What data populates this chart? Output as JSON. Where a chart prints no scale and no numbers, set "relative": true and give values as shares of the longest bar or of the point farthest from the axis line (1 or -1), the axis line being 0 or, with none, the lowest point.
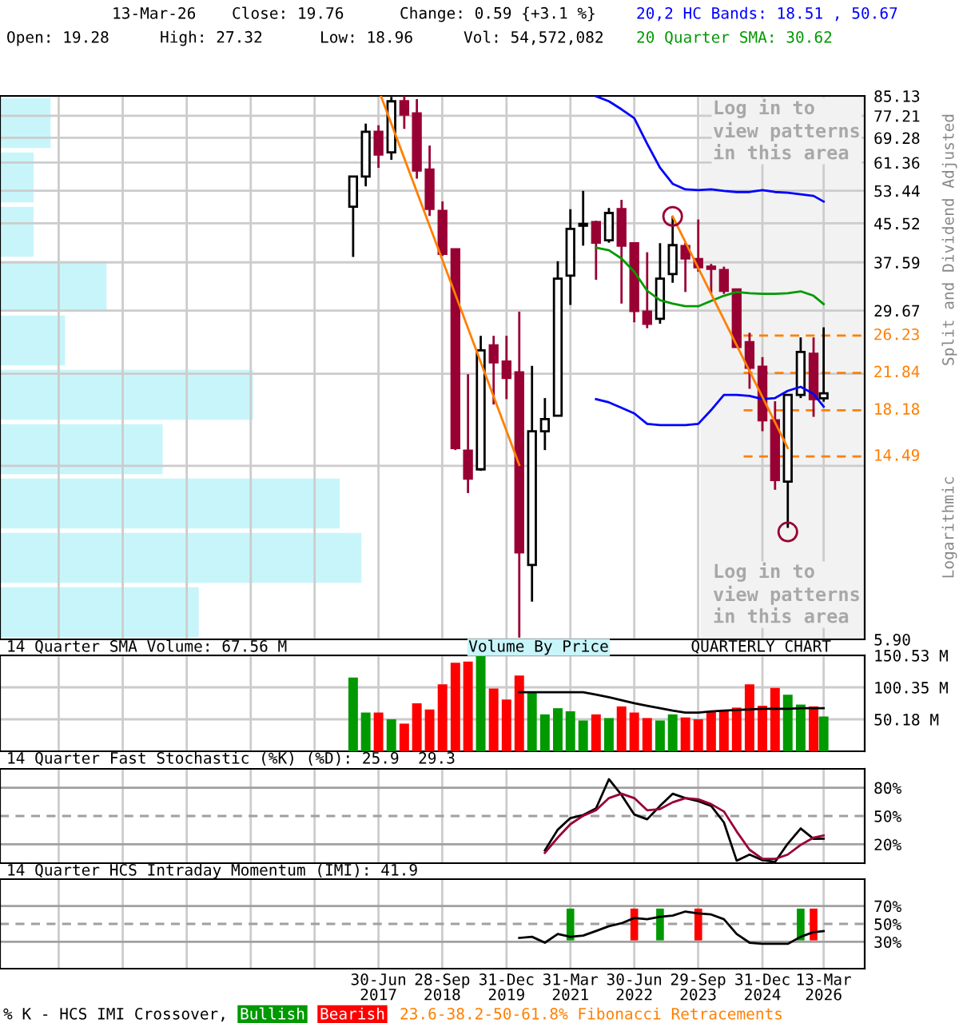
{
  "chart_data": [
    {
      "type": "candlestick",
      "x": [
        "2016-12-31",
        "2017-03-31",
        "2017-06-30",
        "2017-09-30",
        "2017-12-31",
        "2018-03-31",
        "2018-06-30",
        "2018-09-30",
        "2018-12-31",
        "2019-03-31",
        "2019-06-30",
        "2019-09-30",
        "2019-12-31",
        "2020-03-31",
        "2020-06-30",
        "2020-09-30",
        "2020-12-31",
        "2021-03-31",
        "2021-06-30",
        "2021-09-30",
        "2021-12-31",
        "2022-03-31",
        "2022-06-30",
        "2022-09-30",
        "2022-12-31",
        "2023-03-31",
        "2023-06-30",
        "2023-09-30",
        "2023-12-31",
        "2024-03-31",
        "2024-06-30",
        "2024-09-30",
        "2024-12-31",
        "2025-03-31",
        "2025-06-30",
        "2025-09-30",
        "2025-12-31",
        "2026-03-13"
      ],
      "ohlc": [
        [
          49.4,
          57.3,
          38.6,
          57.3
        ],
        [
          57.3,
          74.3,
          54.6,
          71.4
        ],
        [
          71.4,
          73.7,
          59.8,
          63.8
        ],
        [
          64.5,
          84.7,
          62.2,
          82.9
        ],
        [
          82.9,
          85.1,
          72.4,
          77.7
        ],
        [
          78.1,
          83.8,
          56.7,
          59.0
        ],
        [
          59.3,
          66.7,
          47.2,
          48.9
        ],
        [
          48.4,
          50.7,
          38.8,
          39.2
        ],
        [
          40.1,
          40.1,
          14.95,
          15.1
        ],
        [
          14.9,
          21.7,
          12.1,
          13.0
        ],
        [
          13.6,
          26.2,
          13.5,
          24.4
        ],
        [
          25.0,
          26.2,
          18.7,
          23.0
        ],
        [
          23.1,
          26.2,
          19.2,
          21.3
        ],
        [
          21.9,
          29.5,
          5.95,
          9.05
        ],
        [
          8.5,
          22.6,
          7.1,
          16.4
        ],
        [
          16.4,
          19.3,
          14.95,
          17.4
        ],
        [
          17.7,
          37.8,
          17.7,
          34.7
        ],
        [
          35.2,
          48.8,
          30.5,
          44.3
        ],
        [
          45.0,
          53.4,
          40.8,
          45.4
        ],
        [
          45.8,
          46.1,
          34.5,
          41.4
        ],
        [
          41.9,
          49.1,
          41.4,
          47.9
        ],
        [
          48.8,
          51.1,
          30.7,
          40.8
        ],
        [
          41.3,
          41.3,
          28.0,
          29.6
        ],
        [
          29.5,
          39.5,
          27.2,
          27.8
        ],
        [
          28.5,
          41.3,
          27.8,
          34.7
        ],
        [
          35.5,
          47.1,
          34.0,
          40.9
        ],
        [
          40.7,
          41.4,
          32.5,
          38.3
        ],
        [
          38.2,
          46.4,
          35.9,
          36.7
        ],
        [
          36.8,
          37.3,
          32.3,
          36.4
        ],
        [
          36.2,
          36.8,
          32.2,
          32.7
        ],
        [
          32.9,
          32.9,
          24.8,
          24.8
        ],
        [
          25.4,
          26.6,
          20.2,
          22.4
        ],
        [
          22.5,
          23.6,
          16.4,
          17.3
        ],
        [
          17.3,
          19.0,
          12.3,
          12.9
        ],
        [
          12.8,
          19.6,
          10.2,
          19.6
        ],
        [
          19.6,
          26.0,
          19.3,
          24.2
        ],
        [
          24.0,
          26.0,
          17.6,
          19.2
        ],
        [
          19.28,
          27.32,
          18.96,
          19.76
        ]
      ],
      "colors": [
        "#ffffff",
        "#ffffff",
        "#990033",
        "#ffffff",
        "#990033",
        "#990033",
        "#990033",
        "#990033",
        "#990033",
        "#990033",
        "#ffffff",
        "#990033",
        "#990033",
        "#990033",
        "#ffffff",
        "#ffffff",
        "#ffffff",
        "#ffffff",
        "#ffffff",
        "#990033",
        "#ffffff",
        "#990033",
        "#990033",
        "#990033",
        "#ffffff",
        "#ffffff",
        "#990033",
        "#990033",
        "#990033",
        "#990033",
        "#990033",
        "#990033",
        "#990033",
        "#990033",
        "#ffffff",
        "#ffffff",
        "#990033",
        "#ffffff"
      ],
      "series": [
        {
          "type": "line",
          "name": "20 Quarter SMA: 30.62",
          "color": "#009900",
          "x": [
            "2021-09-30",
            "2021-12-31",
            "2022-03-31",
            "2022-06-30",
            "2022-09-30",
            "2022-12-31",
            "2023-03-31",
            "2023-06-30",
            "2023-09-30",
            "2023-12-31",
            "2024-03-31",
            "2024-06-30",
            "2024-09-30",
            "2024-12-31",
            "2025-03-31",
            "2025-06-30",
            "2025-09-30",
            "2025-12-31",
            "2026-03-13"
          ],
          "values": [
            40.4,
            39.9,
            38.3,
            35.9,
            32.7,
            31.2,
            30.7,
            30.3,
            30.3,
            31.1,
            31.9,
            32.5,
            32.3,
            32.2,
            32.2,
            32.3,
            32.6,
            31.9,
            30.62
          ]
        },
        {
          "type": "line",
          "name": "20,2 HC Bands: 18.51 , 50.67",
          "color": "#0000ff",
          "x": [
            "2021-09-30",
            "2021-12-31",
            "2022-03-31",
            "2022-06-30",
            "2022-09-30",
            "2022-12-31",
            "2023-03-31",
            "2023-06-30",
            "2023-09-30",
            "2023-12-31",
            "2024-03-31",
            "2024-06-30",
            "2024-09-30",
            "2024-12-31",
            "2025-03-31",
            "2025-06-30",
            "2025-09-30",
            "2025-12-31",
            "2026-03-13"
          ],
          "values": [
            85.0,
            82.9,
            79.7,
            76.3,
            67.3,
            59.8,
            55.3,
            53.8,
            53.6,
            53.8,
            53.4,
            53.1,
            53.1,
            53.6,
            53.1,
            52.9,
            52.5,
            52.1,
            50.67
          ]
        },
        {
          "type": "line",
          "color": "#0000ff",
          "x": [
            "2021-09-30",
            "2021-12-31",
            "2022-03-31",
            "2022-06-30",
            "2022-09-30",
            "2022-12-31",
            "2023-03-31",
            "2023-06-30",
            "2023-09-30",
            "2023-12-31",
            "2024-03-31",
            "2024-06-30",
            "2024-09-30",
            "2024-12-31",
            "2025-03-31",
            "2025-06-30",
            "2025-09-30",
            "2025-12-31",
            "2026-03-13"
          ],
          "values": [
            19.2,
            18.9,
            18.4,
            17.9,
            17.0,
            16.9,
            16.9,
            16.9,
            17.0,
            18.2,
            19.6,
            19.6,
            19.5,
            19.2,
            19.3,
            20.0,
            20.4,
            19.7,
            18.51
          ]
        },
        {
          "type": "line",
          "color": "#ff7f00",
          "x": [
            "2017-07-18",
            "2020-03-31"
          ],
          "values": [
            85.0,
            13.9
          ]
        },
        {
          "type": "line",
          "color": "#ff7f00",
          "x": [
            "2023-03-31",
            "2025-06-30"
          ],
          "values": [
            47.1,
            15.1
          ]
        },
        {
          "type": "scatter",
          "color": "#990033",
          "marker": "circle",
          "x": [
            "2023-03-31",
            "2025-06-30"
          ],
          "values": [
            47.1,
            10.0
          ]
        }
      ],
      "log": true,
      "ylim": [
        5.9,
        85.13
      ],
      "yticks": [
        {
          "value": 5.9,
          "label": "5.90"
        },
        {
          "value": 13.83,
          "label": null
        },
        {
          "value": 21.75,
          "label": null
        },
        29.67,
        37.59,
        45.52,
        53.44,
        61.36,
        69.28,
        77.21,
        85.13
      ],
      "xlim": [
        "2010-02-05",
        "2026-12-31"
      ],
      "xticks": [
        {
          "value": "2011-03-31",
          "label": null
        },
        {
          "value": "2012-06-30",
          "label": null
        },
        {
          "value": "2013-09-30",
          "label": null
        },
        {
          "value": "2014-12-31",
          "label": null
        },
        {
          "value": "2016-03-31",
          "label": null
        },
        {
          "value": "2017-06-30",
          "label": null
        },
        {
          "value": "2018-09-28",
          "label": null
        },
        {
          "value": "2019-12-31",
          "label": null
        },
        {
          "value": "2021-03-31",
          "label": null
        },
        {
          "value": "2022-06-30",
          "label": null
        },
        {
          "value": "2023-09-29",
          "label": null
        },
        {
          "value": "2024-12-31",
          "label": null
        },
        {
          "value": "2026-03-13",
          "label": null
        }
      ],
      "tick_labels": "y",
      "grid": true,
      "legend": "top right",
      "ylabel": "Split and Dividend Adjusted",
      "ref_lines": [
        {
          "axis": "y",
          "value": 26.23,
          "label": "26.23",
          "color": "#ff7f00",
          "line_style": "dashed"
        },
        {
          "axis": "y",
          "value": 21.84,
          "label": "21.84",
          "color": "#ff7f00",
          "line_style": "dashed"
        },
        {
          "axis": "y",
          "value": 18.18,
          "label": "18.18",
          "color": "#ff7f00",
          "line_style": "dashed"
        },
        {
          "axis": "y",
          "value": 14.49,
          "label": "14.49",
          "color": "#ff7f00",
          "line_style": "dashed"
        }
      ],
      "bands": [
        {
          "axis": "x",
          "from": "2023-10-15",
          "to": "2026-12-31",
          "color": "#f2f2f2"
        }
      ],
      "annotations": [
        "13-Mar-26",
        "Close: 19.76",
        "Change: 0.59 {+3.1 %}",
        "Open: 19.28",
        "High: 27.32",
        "Low: 18.96",
        "Vol: 54,572,082",
        "Log in to\nview patterns\nin this area",
        "Log in to\nview patterns\nin this area",
        "Logarithmic"
      ]
    },
    {
      "type": "bar",
      "orientation": "horizontal",
      "relative": true,
      "categories": [
        null,
        null,
        null,
        null,
        null,
        null,
        null,
        null,
        null,
        null
      ],
      "values": [
        0.14,
        0.093,
        0.093,
        0.295,
        0.18,
        0.7,
        0.45,
        0.94,
        1,
        0.55
      ],
      "color": "#c8f5fa"
    },
    {
      "type": "bar",
      "title": "14 Quarter SMA Volume: 67.56 M",
      "x": [
        "2016-12-31",
        "2017-03-31",
        "2017-06-30",
        "2017-09-30",
        "2017-12-31",
        "2018-03-31",
        "2018-06-30",
        "2018-09-30",
        "2018-12-31",
        "2019-03-31",
        "2019-06-30",
        "2019-09-30",
        "2019-12-31",
        "2020-03-31",
        "2020-06-30",
        "2020-09-30",
        "2020-12-31",
        "2021-03-31",
        "2021-06-30",
        "2021-09-30",
        "2021-12-31",
        "2022-03-31",
        "2022-06-30",
        "2022-09-30",
        "2022-12-31",
        "2023-03-31",
        "2023-06-30",
        "2023-09-30",
        "2023-12-31",
        "2024-03-31",
        "2024-06-30",
        "2024-09-30",
        "2024-12-31",
        "2025-03-31",
        "2025-06-30",
        "2025-09-30",
        "2025-12-31",
        "2026-03-13"
      ],
      "values": [
        115.8,
        60.8,
        60.8,
        50.2,
        43.4,
        75.3,
        65.6,
        105.2,
        139.0,
        140.9,
        150.0,
        98.4,
        81.1,
        118.7,
        92.6,
        57.9,
        67.6,
        62.7,
        48.3,
        57.9,
        52.1,
        70.4,
        60.8,
        52.1,
        48.3,
        57.9,
        53.1,
        50.2,
        62.7,
        62.7,
        68.5,
        105.2,
        71.4,
        99.4,
        88.8,
        73.3,
        70.4,
        54.6
      ],
      "colors": [
        "#009900",
        "#009900",
        "#ff0000",
        "#009900",
        "#ff0000",
        "#ff0000",
        "#ff0000",
        "#ff0000",
        "#ff0000",
        "#ff0000",
        "#009900",
        "#ff0000",
        "#ff0000",
        "#ff0000",
        "#009900",
        "#009900",
        "#009900",
        "#009900",
        "#009900",
        "#ff0000",
        "#009900",
        "#ff0000",
        "#ff0000",
        "#ff0000",
        "#009900",
        "#009900",
        "#ff0000",
        "#ff0000",
        "#ff0000",
        "#ff0000",
        "#ff0000",
        "#ff0000",
        "#ff0000",
        "#ff0000",
        "#009900",
        "#009900",
        "#ff0000",
        "#009900"
      ],
      "series": [
        {
          "type": "line",
          "color": "#000000",
          "x": [
            "2020-03-31",
            "2020-06-30",
            "2020-09-30",
            "2020-12-31",
            "2021-03-31",
            "2021-06-30",
            "2021-09-30",
            "2021-12-31",
            "2022-03-31",
            "2022-06-30",
            "2022-09-30",
            "2022-12-31",
            "2023-03-31",
            "2023-06-30",
            "2023-09-30",
            "2023-12-31",
            "2024-03-31",
            "2024-06-30",
            "2024-09-30",
            "2024-12-31",
            "2025-03-31",
            "2025-06-30",
            "2025-09-30",
            "2025-12-31",
            "2026-03-13"
          ],
          "values": [
            92.6,
            92.6,
            92.6,
            92.6,
            92.6,
            92.6,
            88.8,
            84.9,
            80.1,
            75.3,
            71.4,
            67.6,
            63.7,
            60.8,
            60.8,
            62.7,
            63.7,
            64.7,
            65.6,
            66.6,
            66.6,
            66.6,
            67.6,
            67.6,
            67.56
          ]
        }
      ],
      "ylim": [
        0,
        150.53
      ],
      "yticks": [
        {
          "value": 50.18,
          "label": "50.18 M"
        },
        {
          "value": 100.35,
          "label": "100.35 M"
        },
        {
          "value": 150.53,
          "label": "150.53 M"
        }
      ],
      "xlim": [
        "2010-02-05",
        "2026-12-31"
      ],
      "xticks": [
        {
          "value": "2011-03-31",
          "label": null
        },
        {
          "value": "2012-06-30",
          "label": null
        },
        {
          "value": "2013-09-30",
          "label": null
        },
        {
          "value": "2014-12-31",
          "label": null
        },
        {
          "value": "2016-03-31",
          "label": null
        },
        {
          "value": "2017-06-30",
          "label": null
        },
        {
          "value": "2018-09-28",
          "label": null
        },
        {
          "value": "2019-12-31",
          "label": null
        },
        {
          "value": "2021-03-31",
          "label": null
        },
        {
          "value": "2022-06-30",
          "label": null
        },
        {
          "value": "2023-09-29",
          "label": null
        },
        {
          "value": "2024-12-31",
          "label": null
        },
        {
          "value": "2026-03-13",
          "label": null
        }
      ],
      "tick_labels": "y",
      "grid": true,
      "annotations": [
        "QUARTERLY CHART",
        "Volume By Price"
      ]
    },
    {
      "type": "line",
      "title": "14 Quarter Fast Stochastic (%K) (%D): 25.9  29.3",
      "series": [
        {
          "type": "line",
          "color": "#000000",
          "x": [
            "2020-09-30",
            "2020-12-31",
            "2021-03-31",
            "2021-06-30",
            "2021-09-30",
            "2021-12-31",
            "2022-03-31",
            "2022-06-30",
            "2022-09-30",
            "2022-12-31",
            "2023-03-31",
            "2023-06-30",
            "2023-09-30",
            "2023-12-31",
            "2024-03-31",
            "2024-06-30",
            "2024-09-30",
            "2024-12-31",
            "2025-03-31",
            "2025-06-30",
            "2025-09-30",
            "2025-12-31",
            "2026-03-13"
          ],
          "values": [
            13.6,
            35.5,
            47.8,
            51.0,
            58.1,
            89.0,
            72.3,
            51.6,
            46.5,
            60.7,
            73.6,
            69.0,
            65.8,
            60.7,
            43.2,
            2.6,
            9.1,
            3.2,
            1.3,
            20.7,
            36.8,
            25.8,
            25.9
          ]
        },
        {
          "type": "line",
          "color": "#990033",
          "x": [
            "2020-09-30",
            "2020-12-31",
            "2021-03-31",
            "2021-06-30",
            "2021-09-30",
            "2021-12-31",
            "2022-03-31",
            "2022-06-30",
            "2022-09-30",
            "2022-12-31",
            "2023-03-31",
            "2023-06-30",
            "2023-09-30",
            "2023-12-31",
            "2024-03-31",
            "2024-06-30",
            "2024-09-30",
            "2024-12-31",
            "2025-03-31",
            "2025-06-30",
            "2025-09-30",
            "2025-12-31",
            "2026-03-13"
          ],
          "values": [
            11.0,
            27.1,
            41.3,
            50.3,
            56.1,
            69.0,
            73.6,
            69.0,
            56.1,
            57.4,
            64.5,
            69.0,
            67.7,
            62.6,
            54.8,
            33.6,
            14.2,
            4.5,
            4.5,
            9.1,
            19.4,
            27.1,
            29.3
          ]
        }
      ],
      "ylim": [
        0,
        100
      ],
      "yticks": [
        {
          "value": 20,
          "label": "20%"
        },
        {
          "value": 50,
          "label": "50%"
        },
        {
          "value": 80,
          "label": "80%"
        }
      ],
      "xlim": [
        "2010-02-05",
        "2026-12-31"
      ],
      "xticks": [
        {
          "value": "2011-03-31",
          "label": null
        },
        {
          "value": "2012-06-30",
          "label": null
        },
        {
          "value": "2013-09-30",
          "label": null
        },
        {
          "value": "2014-12-31",
          "label": null
        },
        {
          "value": "2016-03-31",
          "label": null
        },
        {
          "value": "2017-06-30",
          "label": null
        },
        {
          "value": "2018-09-28",
          "label": null
        },
        {
          "value": "2019-12-31",
          "label": null
        },
        {
          "value": "2021-03-31",
          "label": null
        },
        {
          "value": "2022-06-30",
          "label": null
        },
        {
          "value": "2023-09-29",
          "label": null
        },
        {
          "value": "2024-12-31",
          "label": null
        },
        {
          "value": "2026-03-13",
          "label": null
        }
      ],
      "tick_labels": "y",
      "grid": "x",
      "ref_lines": [
        {
          "axis": "y",
          "value": 20,
          "color": "#a0a0a0",
          "line_style": "solid"
        },
        {
          "axis": "y",
          "value": 50,
          "color": "#a0a0a0",
          "line_style": "dashed"
        },
        {
          "axis": "y",
          "value": 80,
          "color": "#a0a0a0",
          "line_style": "solid"
        }
      ]
    },
    {
      "type": "line",
      "title": "14 Quarter HCS Intraday Momentum (IMI): 41.9",
      "series": [
        {
          "type": "line",
          "color": "#000000",
          "x": [
            "2020-03-31",
            "2020-06-30",
            "2020-09-30",
            "2020-12-31",
            "2021-03-31",
            "2021-06-30",
            "2021-09-30",
            "2021-12-31",
            "2022-03-31",
            "2022-06-30",
            "2022-09-30",
            "2022-12-31",
            "2023-03-31",
            "2023-06-30",
            "2023-09-30",
            "2023-12-31",
            "2024-03-31",
            "2024-06-30",
            "2024-09-30",
            "2024-12-31",
            "2025-03-31",
            "2025-06-30",
            "2025-09-30",
            "2025-12-31",
            "2026-03-13"
          ],
          "values": [
            34.3,
            35.6,
            29.0,
            38.8,
            35.6,
            36.9,
            42.1,
            47.4,
            50.7,
            56.6,
            55.2,
            57.9,
            59.2,
            63.8,
            61.8,
            60.5,
            55.2,
            38.8,
            29.0,
            27.7,
            27.7,
            27.7,
            35.6,
            40.8,
            41.9
          ]
        },
        {
          "type": "bar",
          "name": "Bullish",
          "color": "#009900",
          "x": [
            "2021-03-31",
            "2022-12-31",
            "2025-09-30"
          ],
          "values": [
            35.5,
            35.5,
            35.5
          ],
          "base": [
            31.6,
            31.6,
            31.6
          ]
        },
        {
          "type": "bar",
          "name": "Bearish",
          "color": "#ff0000",
          "x": [
            "2022-06-30",
            "2023-09-30",
            "2025-12-31"
          ],
          "values": [
            35.5,
            35.5,
            35.5
          ],
          "base": [
            31.6,
            31.6,
            31.6
          ]
        }
      ],
      "ylim": [
        0,
        100
      ],
      "yticks": [
        {
          "value": 30,
          "label": "30%"
        },
        {
          "value": 50,
          "label": "50%"
        },
        {
          "value": 70,
          "label": "70%"
        }
      ],
      "xlim": [
        "2010-02-05",
        "2026-12-31"
      ],
      "xticks": [
        {
          "value": "2011-03-31",
          "label": null
        },
        {
          "value": "2012-06-30",
          "label": null
        },
        {
          "value": "2013-09-30",
          "label": null
        },
        {
          "value": "2014-12-31",
          "label": null
        },
        {
          "value": "2016-03-31",
          "label": null
        },
        {
          "value": "2017-06-30",
          "label": "30-Jun\n2017"
        },
        {
          "value": "2018-09-28",
          "label": "28-Sep\n2018"
        },
        {
          "value": "2019-12-31",
          "label": "31-Dec\n2019"
        },
        {
          "value": "2021-03-31",
          "label": "31-Mar\n2021"
        },
        {
          "value": "2022-06-30",
          "label": "30-Jun\n2022"
        },
        {
          "value": "2023-09-29",
          "label": "29-Sep\n2023"
        },
        {
          "value": "2024-12-31",
          "label": "31-Dec\n2024"
        },
        {
          "value": "2026-03-13",
          "label": "13-Mar\n2026"
        }
      ],
      "grid": "x",
      "legend": "bottom",
      "legend_title": "% K - HCS IMI Crossover,",
      "ref_lines": [
        {
          "axis": "y",
          "value": 30,
          "color": "#a0a0a0",
          "line_style": "solid"
        },
        {
          "axis": "y",
          "value": 50,
          "color": "#a0a0a0",
          "line_style": "dashed"
        },
        {
          "axis": "y",
          "value": 70,
          "color": "#a0a0a0",
          "line_style": "solid"
        }
      ],
      "annotations": [
        "23.6-38.2-50-61.8% Fibonacci Retracements"
      ]
    }
  ]
}
